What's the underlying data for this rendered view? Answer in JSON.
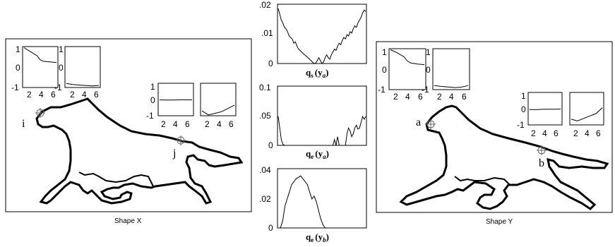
{
  "shape_x": {
    "caption": "Shape X",
    "point_i": "i",
    "point_j": "j",
    "plot_i": {
      "yticks": [
        "1",
        "0",
        "-1"
      ],
      "xticks": [
        "2",
        "4",
        "6"
      ],
      "left_series": [
        [
          1,
          0.95
        ],
        [
          2,
          0.75
        ],
        [
          3,
          0.55
        ],
        [
          3.5,
          0.35
        ],
        [
          4,
          0.28
        ],
        [
          5,
          0.25
        ],
        [
          6,
          0.22
        ]
      ],
      "right_series": [
        [
          1,
          -0.8
        ],
        [
          2,
          -0.85
        ],
        [
          3,
          -0.88
        ],
        [
          4,
          -0.9
        ],
        [
          5,
          -0.92
        ],
        [
          6,
          -0.9
        ]
      ]
    },
    "plot_j": {
      "yticks": [
        "1",
        "0",
        "-1"
      ],
      "xticks_left": [
        "2",
        "4",
        "6"
      ],
      "xticks_right": [
        "2",
        "4",
        "6"
      ],
      "left_series": [
        [
          1,
          -0.02
        ],
        [
          2,
          -0.03
        ],
        [
          3,
          -0.03
        ],
        [
          4,
          -0.02
        ],
        [
          5,
          -0.02
        ],
        [
          6,
          -0.02
        ]
      ],
      "right_series": [
        [
          1,
          -0.7
        ],
        [
          2,
          -0.95
        ],
        [
          3,
          -0.85
        ],
        [
          4,
          -0.75
        ],
        [
          5,
          -0.55
        ],
        [
          6,
          -0.35
        ]
      ]
    }
  },
  "shape_y": {
    "caption": "Shape Y",
    "point_a": "a",
    "point_b": "b",
    "plot_a": {
      "yticks": [
        "1",
        "0",
        "-1"
      ],
      "xticks": [
        "2",
        "4",
        "6"
      ],
      "left_series": [
        [
          1,
          0.95
        ],
        [
          2,
          0.8
        ],
        [
          3,
          0.6
        ],
        [
          3.5,
          0.4
        ],
        [
          4,
          0.3
        ],
        [
          5,
          0.25
        ],
        [
          6,
          0.22
        ]
      ],
      "right_series": [
        [
          1,
          -0.8
        ],
        [
          2,
          -0.84
        ],
        [
          3,
          -0.87
        ],
        [
          4,
          -0.9
        ],
        [
          5,
          -0.88
        ],
        [
          6,
          -0.8
        ]
      ]
    },
    "plot_b": {
      "yticks": [
        "1",
        "0",
        "-1"
      ],
      "xticks_left": [
        "2",
        "4",
        "6"
      ],
      "xticks_right": [
        "2",
        "4",
        "6"
      ],
      "left_series": [
        [
          1,
          -0.05
        ],
        [
          2,
          -0.06
        ],
        [
          3,
          -0.04
        ],
        [
          4,
          -0.03
        ],
        [
          5,
          -0.03
        ],
        [
          6,
          -0.02
        ]
      ],
      "right_series": [
        [
          1,
          -0.65
        ],
        [
          2,
          -0.75
        ],
        [
          3,
          -0.6
        ],
        [
          4,
          -0.45
        ],
        [
          5,
          -0.3
        ],
        [
          6,
          0.05
        ]
      ]
    }
  },
  "cost_plots": [
    {
      "caption_main": "q",
      "caption_sub": "s",
      "caption_arg": "(y",
      "caption_arg_sub": "a",
      "caption_close": ")",
      "yticks": [
        ".02",
        ".01",
        "0"
      ],
      "ymax": 0.02,
      "values": [
        0.019,
        0.017,
        0.015,
        0.014,
        0.0125,
        0.012,
        0.011,
        0.0095,
        0.009,
        0.0085,
        0.007,
        0.0075,
        0.006,
        0.005,
        0.0045,
        0.004,
        0.0035,
        0.003,
        0.0025,
        0.002,
        0.0015,
        0.001,
        0.0005,
        0,
        0.0002,
        0.001,
        0.002,
        0.001,
        0,
        0.0005,
        0.002,
        0.003,
        0.002,
        0.0015,
        0.003,
        0.004,
        0.005,
        0.0045,
        0.006,
        0.007,
        0.0065,
        0.008,
        0.009,
        0.0085,
        0.01,
        0.0095,
        0.011,
        0.0105,
        0.012,
        0.013,
        0.0125,
        0.014,
        0.015,
        0.016,
        0.0175,
        0.0185,
        0.018
      ]
    },
    {
      "caption_main": "q",
      "caption_sub": "e",
      "caption_arg": "(y",
      "caption_arg_sub": "a",
      "caption_close": ")",
      "yticks": [
        "0.1",
        ".05",
        "0"
      ],
      "ymax": 0.1,
      "values": [
        0.05,
        0.03,
        0.01,
        0.002,
        0,
        0,
        0,
        0,
        0,
        0,
        0,
        0,
        0,
        0,
        0,
        0,
        0,
        0,
        0,
        0,
        0,
        0,
        0,
        0,
        0,
        0,
        0,
        0,
        0,
        0,
        0,
        0,
        0,
        0,
        0,
        0,
        0.01,
        0.0,
        0.015,
        0.0,
        0,
        0,
        0,
        0,
        0.02,
        0.03,
        0.025,
        0.015,
        0.02,
        0.03,
        0.035,
        0.028,
        0.03,
        0.04,
        0.05,
        0.045,
        0.05
      ]
    },
    {
      "caption_main": "q",
      "caption_sub": "e",
      "caption_arg": "(y",
      "caption_arg_sub": "b",
      "caption_close": ")",
      "yticks": [
        ".04",
        ".02",
        "0"
      ],
      "ymax": 0.04,
      "values": [
        0,
        0,
        0.005,
        0.015,
        0.02,
        0.025,
        0.03,
        0.032,
        0.034,
        0.035,
        0.036,
        0.034,
        0.032,
        0.03,
        0.025,
        0.02,
        0.022,
        0.018,
        0.012,
        0.006,
        0.002,
        0,
        0,
        0,
        0,
        0,
        0,
        0,
        0,
        0,
        0,
        0,
        0,
        0,
        0,
        0,
        0,
        0,
        0,
        0
      ]
    }
  ]
}
